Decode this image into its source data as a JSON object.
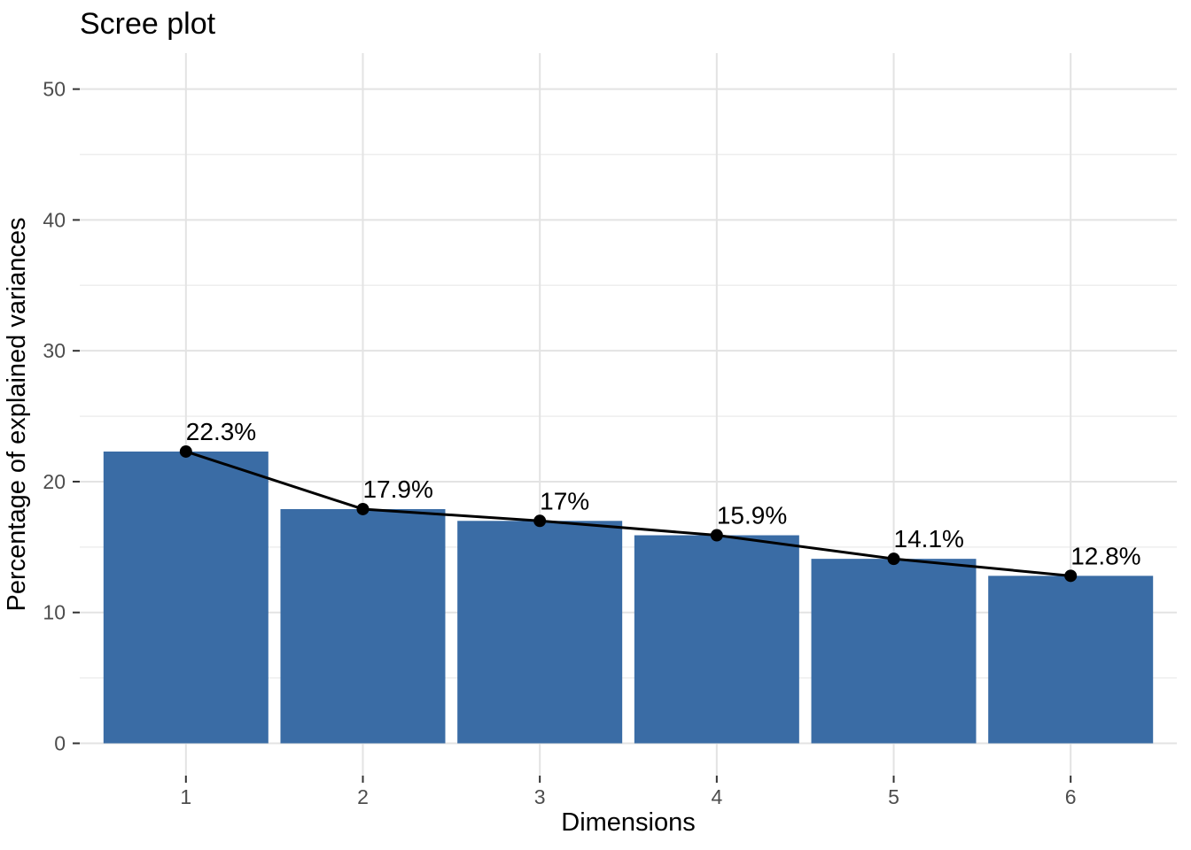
{
  "chart_data": {
    "type": "bar",
    "subtype": "scree-plot-with-line-overlay",
    "title": "Scree plot",
    "xlabel": "Dimensions",
    "ylabel": "Percentage of explained variances",
    "categories": [
      "1",
      "2",
      "3",
      "4",
      "5",
      "6"
    ],
    "values": [
      22.3,
      17.9,
      17,
      15.9,
      14.1,
      12.8
    ],
    "point_labels": [
      "22.3%",
      "17.9%",
      "17%",
      "15.9%",
      "14.1%",
      "12.8%"
    ],
    "y_ticks_major": [
      0,
      10,
      20,
      30,
      40,
      50
    ],
    "y_ticks_minor": [
      5,
      15,
      25,
      35,
      45
    ],
    "ylim": [
      -2.47,
      52.75
    ],
    "grid": "major and minor horizontal, major vertical, light gray on white",
    "legend_position": "none",
    "colors": {
      "bar_fill": "#3A6CA5",
      "line": "#000000",
      "point": "#000000",
      "grid_major": "#E3E3E3",
      "grid_minor": "#EEEEEE",
      "tick_mark": "#333333",
      "tick_label": "#4D4D4D",
      "axis_title": "#000000",
      "title": "#000000",
      "value_label": "#000000",
      "background": "#FFFFFF"
    }
  }
}
